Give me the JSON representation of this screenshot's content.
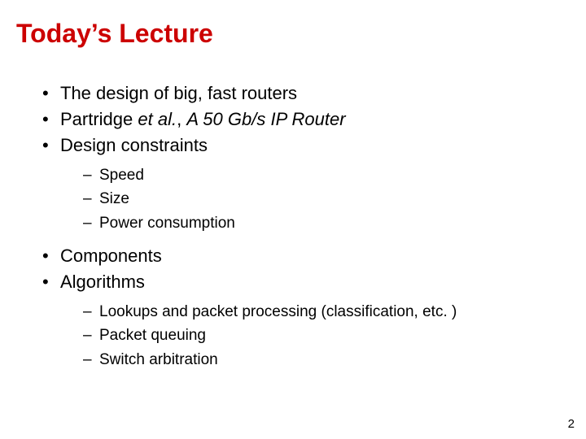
{
  "colors": {
    "title": "#cc0000",
    "body_text": "#000000",
    "background": "#ffffff"
  },
  "typography": {
    "font_family": "Arial",
    "title_fontsize_pt": 32,
    "title_weight": "bold",
    "level1_fontsize_pt": 22,
    "level2_fontsize_pt": 19
  },
  "title": "Today’s Lecture",
  "bullets": {
    "b1": "The design of big, fast routers",
    "b2_pre": "Partridge ",
    "b2_et_al": "et al.",
    "b2_mid": ", ",
    "b2_italic": "A 50 Gb/s IP Router",
    "b3": "Design constraints",
    "b3_sub": {
      "s1": "Speed",
      "s2": "Size",
      "s3": "Power consumption"
    },
    "b4": "Components",
    "b5": "Algorithms",
    "b5_sub": {
      "s1": "Lookups and packet processing (classification, etc. )",
      "s2": "Packet queuing",
      "s3": "Switch arbitration"
    }
  },
  "page_number": "2"
}
